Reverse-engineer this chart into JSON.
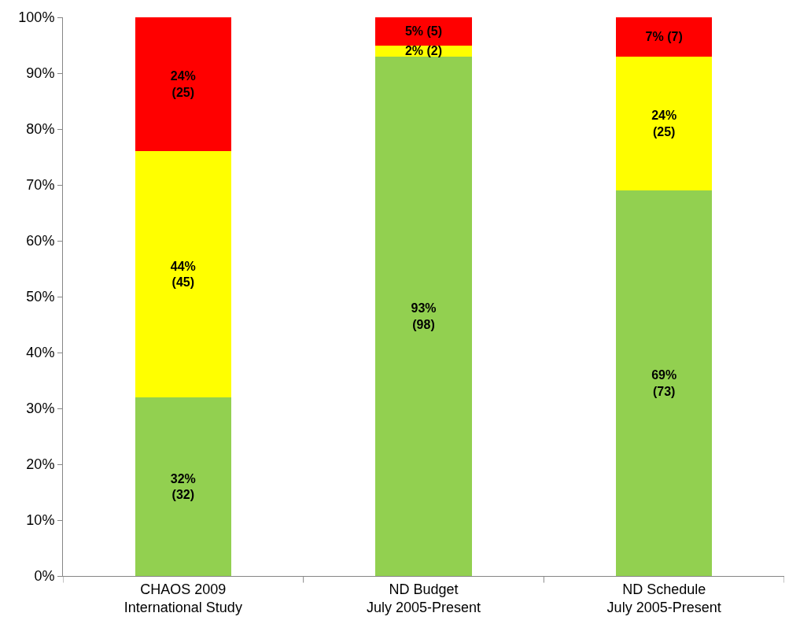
{
  "chart_data": {
    "type": "bar",
    "stacked": true,
    "categories": [
      "CHAOS 2009\nInternational Study",
      "ND Budget\nJuly 2005-Present",
      "ND Schedule\nJuly 2005-Present"
    ],
    "series": [
      {
        "color": "#92d050",
        "values": [
          32,
          93,
          69
        ],
        "value_labels": [
          "32%\n(32)",
          "93%\n(98)",
          "69%\n(73)"
        ]
      },
      {
        "color": "#ffff00",
        "values": [
          44,
          2,
          24
        ],
        "value_labels": [
          "44%\n(45)",
          "2% (2)",
          "24%\n(25)"
        ]
      },
      {
        "color": "#ff0000",
        "values": [
          24,
          5,
          7
        ],
        "value_labels": [
          "24%\n(25)",
          "5% (5)",
          "7% (7)"
        ]
      }
    ],
    "ylim": [
      0,
      100
    ],
    "yticks": [
      {
        "value": 0,
        "label": "0%"
      },
      {
        "value": 10,
        "label": "10%"
      },
      {
        "value": 20,
        "label": "20%"
      },
      {
        "value": 30,
        "label": "30%"
      },
      {
        "value": 40,
        "label": "40%"
      },
      {
        "value": 50,
        "label": "50%"
      },
      {
        "value": 60,
        "label": "60%"
      },
      {
        "value": 70,
        "label": "70%"
      },
      {
        "value": 80,
        "label": "80%"
      },
      {
        "value": 90,
        "label": "90%"
      },
      {
        "value": 100,
        "label": "100%"
      }
    ],
    "grid": false
  }
}
